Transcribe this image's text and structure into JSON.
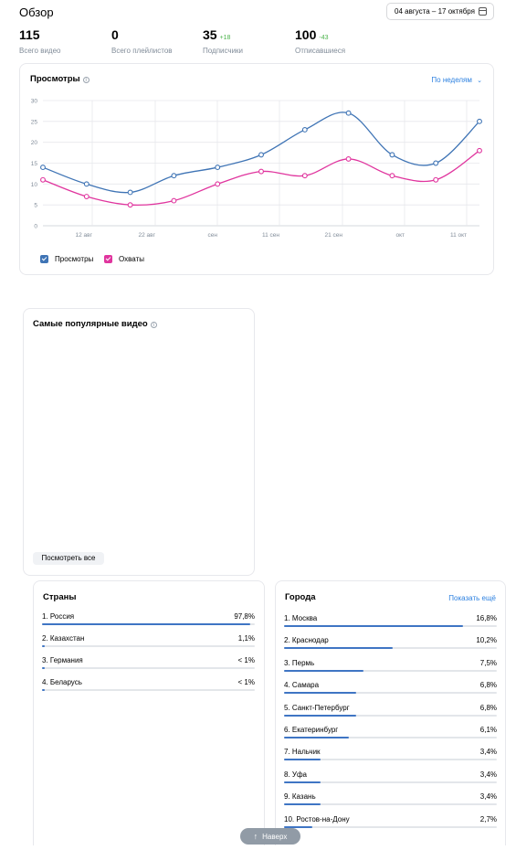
{
  "header": {
    "title": "Обзор",
    "date_range": "04 августа – 17 октября"
  },
  "stats": [
    {
      "value": "115",
      "delta": "",
      "label": "Всего видео"
    },
    {
      "value": "0",
      "delta": "",
      "label": "Всего плейлистов"
    },
    {
      "value": "35",
      "delta": "+18",
      "label": "Подписчики"
    },
    {
      "value": "100",
      "delta": "-43",
      "label": "Отписавшиеся"
    }
  ],
  "views_card": {
    "title": "Просмотры",
    "period_selector": "По неделям",
    "legend": [
      {
        "label": "Просмотры",
        "color": "#3f74b5"
      },
      {
        "label": "Охваты",
        "color": "#e0359e"
      }
    ]
  },
  "chart_data": {
    "type": "line",
    "title": "Просмотры",
    "xlabel": "",
    "ylabel": "",
    "ylim": [
      0,
      30
    ],
    "yticks": [
      "0",
      "5",
      "10",
      "15",
      "20",
      "25",
      "30"
    ],
    "xticks": [
      "12 авг",
      "22 авг",
      "сен",
      "11 сен",
      "21 сен",
      "окт",
      "11 окт"
    ],
    "grid": true,
    "legend_position": "bottom-left",
    "series": [
      {
        "name": "Просмотры",
        "color": "#3f74b5",
        "values": [
          14,
          10,
          8,
          12,
          14,
          17,
          23,
          27,
          17,
          15,
          25
        ]
      },
      {
        "name": "Охваты",
        "color": "#e0359e",
        "values": [
          11,
          7,
          5,
          6,
          10,
          13,
          12,
          16,
          12,
          11,
          18
        ]
      }
    ]
  },
  "popular_card": {
    "title": "Самые популярные видео",
    "button": "Посмотреть все"
  },
  "countries_card": {
    "title": "Страны",
    "items": [
      {
        "name": "1. Россия",
        "pct": "97,8%",
        "share": 0.978
      },
      {
        "name": "2. Казахстан",
        "pct": "1,1%",
        "share": 0.011
      },
      {
        "name": "3. Германия",
        "pct": "< 1%",
        "share": 0.008
      },
      {
        "name": "4. Беларусь",
        "pct": "< 1%",
        "share": 0.008
      }
    ]
  },
  "cities_card": {
    "title": "Города",
    "show_more": "Показать ещё",
    "items": [
      {
        "name": "1. Москва",
        "pct": "16,8%",
        "share": 0.168
      },
      {
        "name": "2. Краснодар",
        "pct": "10,2%",
        "share": 0.102
      },
      {
        "name": "3. Пермь",
        "pct": "7,5%",
        "share": 0.075
      },
      {
        "name": "4. Самара",
        "pct": "6,8%",
        "share": 0.068
      },
      {
        "name": "5. Санкт-Петербург",
        "pct": "6,8%",
        "share": 0.068
      },
      {
        "name": "6. Екатеринбург",
        "pct": "6,1%",
        "share": 0.061
      },
      {
        "name": "7. Нальчик",
        "pct": "3,4%",
        "share": 0.034
      },
      {
        "name": "8. Уфа",
        "pct": "3,4%",
        "share": 0.034
      },
      {
        "name": "9. Казань",
        "pct": "3,4%",
        "share": 0.034
      },
      {
        "name": "10. Ростов-на-Дону",
        "pct": "2,7%",
        "share": 0.027
      }
    ]
  },
  "scroll_top": {
    "label": "Наверх",
    "icon": "arrow-up-icon"
  }
}
